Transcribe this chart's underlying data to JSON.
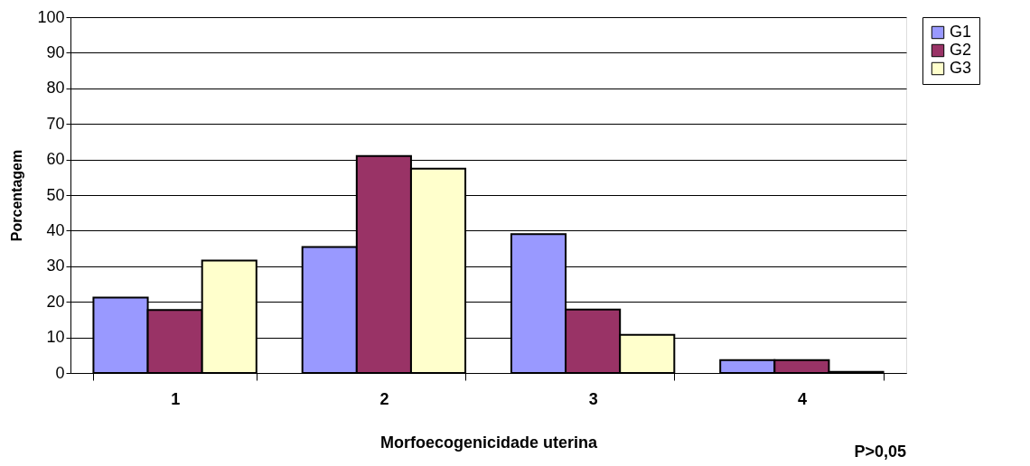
{
  "chart_data": {
    "type": "bar",
    "xlabel": "Morfoecogenicidade uterina",
    "ylabel": "Porcentagem",
    "categories": [
      "1",
      "2",
      "3",
      "4"
    ],
    "series": [
      {
        "name": "G1",
        "color": "#9999ff",
        "values": [
          21.2,
          35.4,
          39.0,
          3.6
        ]
      },
      {
        "name": "G2",
        "color": "#993366",
        "values": [
          17.7,
          61.0,
          17.8,
          3.6
        ]
      },
      {
        "name": "G3",
        "color": "#ffffcc",
        "values": [
          31.6,
          57.4,
          10.7,
          0.3
        ]
      }
    ],
    "ylim": [
      0,
      100
    ],
    "yticks": [
      0,
      10,
      20,
      30,
      40,
      50,
      60,
      70,
      80,
      90,
      100
    ],
    "grid": "y",
    "legend": "right",
    "annotations": [
      "P>0,05"
    ]
  }
}
